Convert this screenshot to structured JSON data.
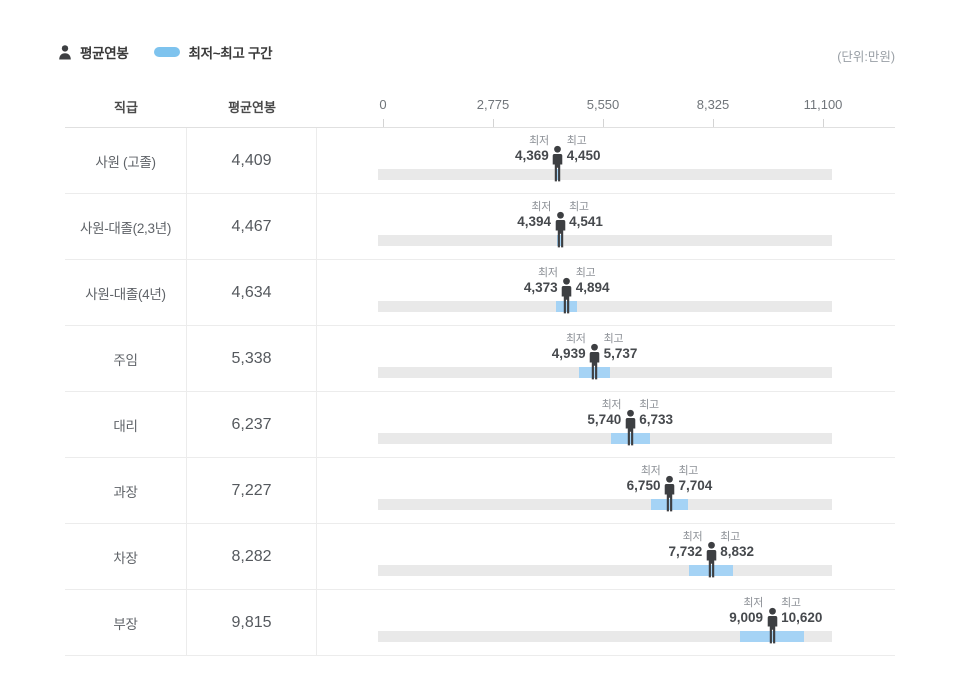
{
  "unit_note": "(단위:만원)",
  "legend": {
    "avg_label": "평균연봉",
    "range_label": "최저~최고 구간"
  },
  "table_header": {
    "rank": "직급",
    "avg": "평균연봉"
  },
  "labels": {
    "min": "최저",
    "max": "최고"
  },
  "axis": {
    "min": 0,
    "max": 11100,
    "ticks": [
      0,
      2775,
      5550,
      8325,
      11100
    ],
    "tick_labels": [
      "0",
      "2,775",
      "5,550",
      "8,325",
      "11,100"
    ]
  },
  "colors": {
    "legend_swatch": "#7ec3ee",
    "range_bar": "#a5d3f5",
    "track": "#e9e9e9",
    "person": "#3d3f42"
  },
  "rows": [
    {
      "rank": "사원 (고졸)",
      "avg_text": "4,409",
      "avg": 4409,
      "min": 4369,
      "max": 4450,
      "min_text": "4,369",
      "max_text": "4,450"
    },
    {
      "rank": "사원-대졸(2,3년)",
      "avg_text": "4,467",
      "avg": 4467,
      "min": 4394,
      "max": 4541,
      "min_text": "4,394",
      "max_text": "4,541"
    },
    {
      "rank": "사원-대졸(4년)",
      "avg_text": "4,634",
      "avg": 4634,
      "min": 4373,
      "max": 4894,
      "min_text": "4,373",
      "max_text": "4,894"
    },
    {
      "rank": "주임",
      "avg_text": "5,338",
      "avg": 5338,
      "min": 4939,
      "max": 5737,
      "min_text": "4,939",
      "max_text": "5,737"
    },
    {
      "rank": "대리",
      "avg_text": "6,237",
      "avg": 6237,
      "min": 5740,
      "max": 6733,
      "min_text": "5,740",
      "max_text": "6,733"
    },
    {
      "rank": "과장",
      "avg_text": "7,227",
      "avg": 7227,
      "min": 6750,
      "max": 7704,
      "min_text": "6,750",
      "max_text": "7,704"
    },
    {
      "rank": "차장",
      "avg_text": "8,282",
      "avg": 8282,
      "min": 7732,
      "max": 8832,
      "min_text": "7,732",
      "max_text": "8,832"
    },
    {
      "rank": "부장",
      "avg_text": "9,815",
      "avg": 9815,
      "min": 9009,
      "max": 10620,
      "min_text": "9,009",
      "max_text": "10,620"
    }
  ],
  "chart_data": {
    "type": "bar",
    "categories": [
      "사원 (고졸)",
      "사원-대졸(2,3년)",
      "사원-대졸(4년)",
      "주임",
      "대리",
      "과장",
      "차장",
      "부장"
    ],
    "series": [
      {
        "name": "평균연봉",
        "values": [
          4409,
          4467,
          4634,
          5338,
          6237,
          7227,
          8282,
          9815
        ]
      },
      {
        "name": "최저",
        "values": [
          4369,
          4394,
          4373,
          4939,
          5740,
          6750,
          7732,
          9009
        ]
      },
      {
        "name": "최고",
        "values": [
          4450,
          4541,
          4894,
          5737,
          6733,
          7704,
          8832,
          10620
        ]
      }
    ],
    "title": "",
    "xlabel": "",
    "ylabel": "",
    "xlim": [
      0,
      11100
    ],
    "unit": "만원",
    "legend_entries": [
      "평균연봉",
      "최저~최고 구간"
    ],
    "legend_position": "top-left",
    "grid": false
  }
}
